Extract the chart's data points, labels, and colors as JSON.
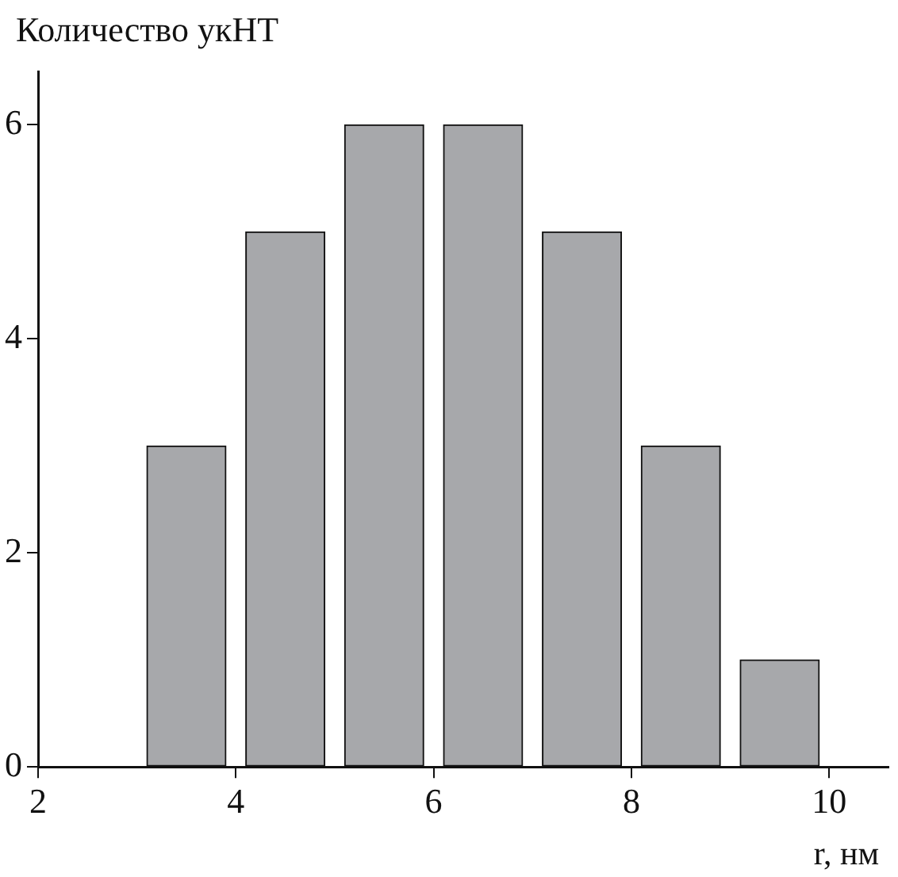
{
  "chart_data": {
    "type": "histogram",
    "xlabel": "r, нм",
    "ylabel": "Количество укНТ",
    "bins": [
      3,
      4,
      5,
      6,
      7,
      8,
      9,
      10
    ],
    "values": [
      3,
      5,
      6,
      6,
      5,
      3,
      1
    ],
    "color": "#a7a8ab",
    "xlim": [
      2,
      10.6
    ],
    "xticks": [
      2,
      4,
      6,
      8,
      10
    ],
    "ylim": [
      0,
      6.5
    ],
    "yticks": [
      0,
      2,
      4,
      6
    ],
    "grid": false,
    "legend": false
  }
}
